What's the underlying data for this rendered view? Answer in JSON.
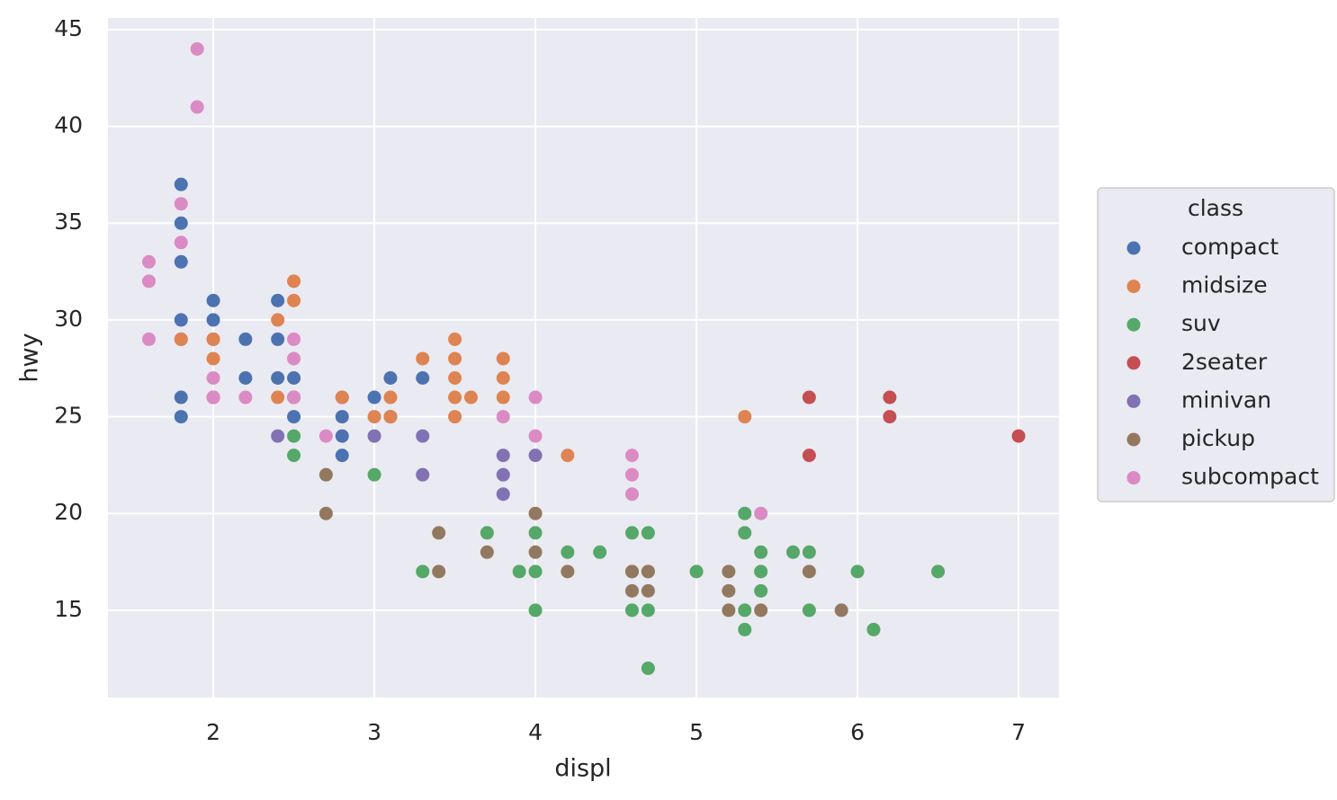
{
  "chart_data": {
    "type": "scatter",
    "x_label": "displ",
    "y_label": "hwy",
    "xlim": [
      1.346,
      7.251
    ],
    "ylim": [
      10.49,
      45.6
    ],
    "xticks": [
      2,
      3,
      4,
      5,
      6,
      7
    ],
    "yticks": [
      15,
      20,
      25,
      30,
      35,
      40,
      45
    ],
    "grid": true,
    "legend_title": "class",
    "legend": "right",
    "series": [
      {
        "name": "compact",
        "color": "#4c72b0",
        "x": [
          1.8,
          1.8,
          1.8,
          1.8,
          1.8,
          1.8,
          1.8,
          2,
          2,
          2,
          2,
          2.2,
          2.2,
          2.4,
          2.4,
          2.4,
          2.5,
          2.5,
          2.5,
          2.8,
          2.8,
          2.8,
          2.8,
          3,
          3.1,
          3.1,
          3.3
        ],
        "y": [
          37,
          35,
          33,
          30,
          29,
          26,
          25,
          31,
          30,
          29,
          26,
          29,
          27,
          31,
          29,
          27,
          27,
          26,
          25,
          26,
          25,
          24,
          23,
          26,
          27,
          25,
          27
        ]
      },
      {
        "name": "midsize",
        "color": "#dd8452",
        "x": [
          1.8,
          2,
          2,
          2,
          2.4,
          2.4,
          2.5,
          2.5,
          2.5,
          2.8,
          3,
          3.1,
          3.1,
          3.3,
          3.5,
          3.5,
          3.5,
          3.5,
          3.5,
          3.6,
          3.8,
          3.8,
          3.8,
          4.2,
          5.3
        ],
        "y": [
          29,
          29,
          28,
          26,
          30,
          26,
          32,
          31,
          26,
          26,
          25,
          26,
          25,
          28,
          29,
          28,
          27,
          26,
          25,
          26,
          28,
          27,
          26,
          23,
          25
        ]
      },
      {
        "name": "suv",
        "color": "#55a868",
        "x": [
          2.5,
          2.5,
          3,
          3.3,
          3.7,
          3.9,
          4,
          4,
          4,
          4.2,
          4.4,
          4.6,
          4.6,
          4.6,
          4.7,
          4.7,
          4.7,
          4.7,
          5,
          5.3,
          5.3,
          5.3,
          5.3,
          5.4,
          5.4,
          5.4,
          5.6,
          5.7,
          5.7,
          6,
          6.1,
          6.5
        ],
        "y": [
          24,
          23,
          22,
          17,
          19,
          17,
          19,
          17,
          15,
          18,
          18,
          19,
          17,
          15,
          19,
          17,
          15,
          12,
          17,
          20,
          19,
          15,
          14,
          18,
          17,
          16,
          18,
          18,
          15,
          17,
          14,
          17
        ]
      },
      {
        "name": "2seater",
        "color": "#c44e52",
        "x": [
          5.7,
          5.7,
          6.2,
          6.2,
          7
        ],
        "y": [
          26,
          23,
          26,
          25,
          24
        ]
      },
      {
        "name": "minivan",
        "color": "#8172b3",
        "x": [
          2.4,
          3,
          3.3,
          3.3,
          3.8,
          3.8,
          3.8,
          4
        ],
        "y": [
          24,
          24,
          24,
          22,
          23,
          22,
          21,
          23
        ]
      },
      {
        "name": "pickup",
        "color": "#937860",
        "x": [
          2.7,
          2.7,
          3.4,
          3.4,
          3.7,
          4,
          4,
          4.2,
          4.6,
          4.6,
          4.7,
          4.7,
          5.2,
          5.2,
          5.2,
          5.4,
          5.7,
          5.9
        ],
        "y": [
          22,
          20,
          19,
          17,
          18,
          20,
          18,
          17,
          17,
          16,
          17,
          16,
          17,
          16,
          15,
          15,
          17,
          15
        ]
      },
      {
        "name": "subcompact",
        "color": "#da8bc3",
        "x": [
          1.6,
          1.6,
          1.6,
          1.8,
          1.8,
          1.9,
          1.9,
          2,
          2,
          2.2,
          2.5,
          2.5,
          2.5,
          2.7,
          3.8,
          4,
          4,
          4.6,
          4.6,
          4.6,
          5.4
        ],
        "y": [
          33,
          32,
          29,
          36,
          34,
          44,
          41,
          27,
          26,
          26,
          29,
          28,
          26,
          24,
          25,
          26,
          24,
          23,
          22,
          21,
          20
        ]
      }
    ]
  }
}
